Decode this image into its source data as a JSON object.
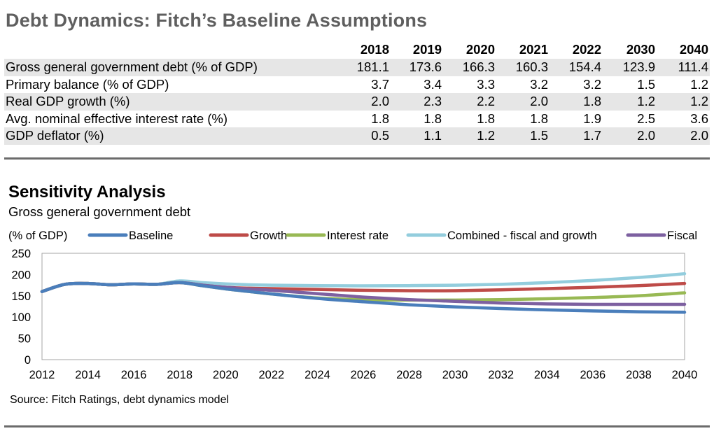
{
  "title": "Debt Dynamics: Fitch’s Baseline Assumptions",
  "table": {
    "columns": [
      "2018",
      "2019",
      "2020",
      "2021",
      "2022",
      "2030",
      "2040"
    ],
    "rows": [
      {
        "label": "Gross general government debt (% of GDP)",
        "values": [
          "181.1",
          "173.6",
          "166.3",
          "160.3",
          "154.4",
          "123.9",
          "111.4"
        ]
      },
      {
        "label": "Primary balance (% of GDP)",
        "values": [
          "3.7",
          "3.4",
          "3.3",
          "3.2",
          "3.2",
          "1.5",
          "1.2"
        ]
      },
      {
        "label": "Real GDP growth (%)",
        "values": [
          "2.0",
          "2.3",
          "2.2",
          "2.0",
          "1.8",
          "1.2",
          "1.2"
        ]
      },
      {
        "label": "Avg. nominal effective interest rate (%)",
        "values": [
          "1.8",
          "1.8",
          "1.8",
          "1.8",
          "1.9",
          "2.5",
          "3.6"
        ]
      },
      {
        "label": "GDP deflator (%)",
        "values": [
          "0.5",
          "1.1",
          "1.2",
          "1.5",
          "1.7",
          "2.0",
          "2.0"
        ]
      }
    ]
  },
  "sensitivity": {
    "title": "Sensitivity Analysis",
    "subtitle": "Gross general government debt"
  },
  "source": "Source: Fitch Ratings,  debt dynamics model",
  "chart_data": {
    "type": "line",
    "title": "",
    "ylabel": "(% of GDP)",
    "xlabel": "",
    "xlim": [
      2012,
      2040
    ],
    "ylim": [
      0,
      250
    ],
    "y_ticks": [
      0,
      50,
      100,
      150,
      200,
      250
    ],
    "x_ticks": [
      2012,
      2014,
      2016,
      2018,
      2020,
      2022,
      2024,
      2026,
      2028,
      2030,
      2032,
      2034,
      2036,
      2038,
      2040
    ],
    "grid": false,
    "legend": "top",
    "x": [
      2012,
      2013,
      2014,
      2015,
      2016,
      2017,
      2018,
      2019,
      2020,
      2021,
      2022,
      2024,
      2026,
      2028,
      2030,
      2032,
      2034,
      2036,
      2038,
      2040
    ],
    "series": [
      {
        "name": "Baseline",
        "color": "#4a7ebb",
        "values": [
          160,
          177,
          179,
          176,
          178,
          177,
          181.1,
          173.6,
          166.3,
          160.3,
          154.4,
          144,
          136,
          129,
          123.9,
          120,
          117,
          114.5,
          112.5,
          111.4
        ]
      },
      {
        "name": "Growth",
        "color": "#be4b48",
        "values": [
          160,
          177,
          179,
          176,
          178,
          177,
          181.1,
          175,
          170,
          168,
          167,
          165,
          163,
          162,
          162,
          164,
          167,
          170,
          174,
          179
        ]
      },
      {
        "name": "Interest rate",
        "color": "#98b954",
        "values": [
          160,
          177,
          179,
          176,
          178,
          177,
          181.1,
          173.6,
          166.3,
          160.3,
          154.4,
          145,
          141,
          140,
          140,
          141,
          143,
          146,
          150,
          157
        ]
      },
      {
        "name": "Combined - fiscal and growth",
        "color": "#93cddd",
        "values": [
          160,
          177,
          179,
          176,
          178,
          177,
          185,
          181,
          178,
          176,
          175,
          174,
          173.5,
          174,
          175,
          177,
          181,
          186,
          193,
          202
        ]
      },
      {
        "name": "Fiscal",
        "color": "#7d60a0",
        "values": [
          160,
          177,
          179,
          176,
          178,
          177,
          181.1,
          175,
          170,
          166,
          163,
          155,
          147,
          141,
          137,
          133,
          131,
          130,
          130,
          130
        ]
      }
    ]
  }
}
